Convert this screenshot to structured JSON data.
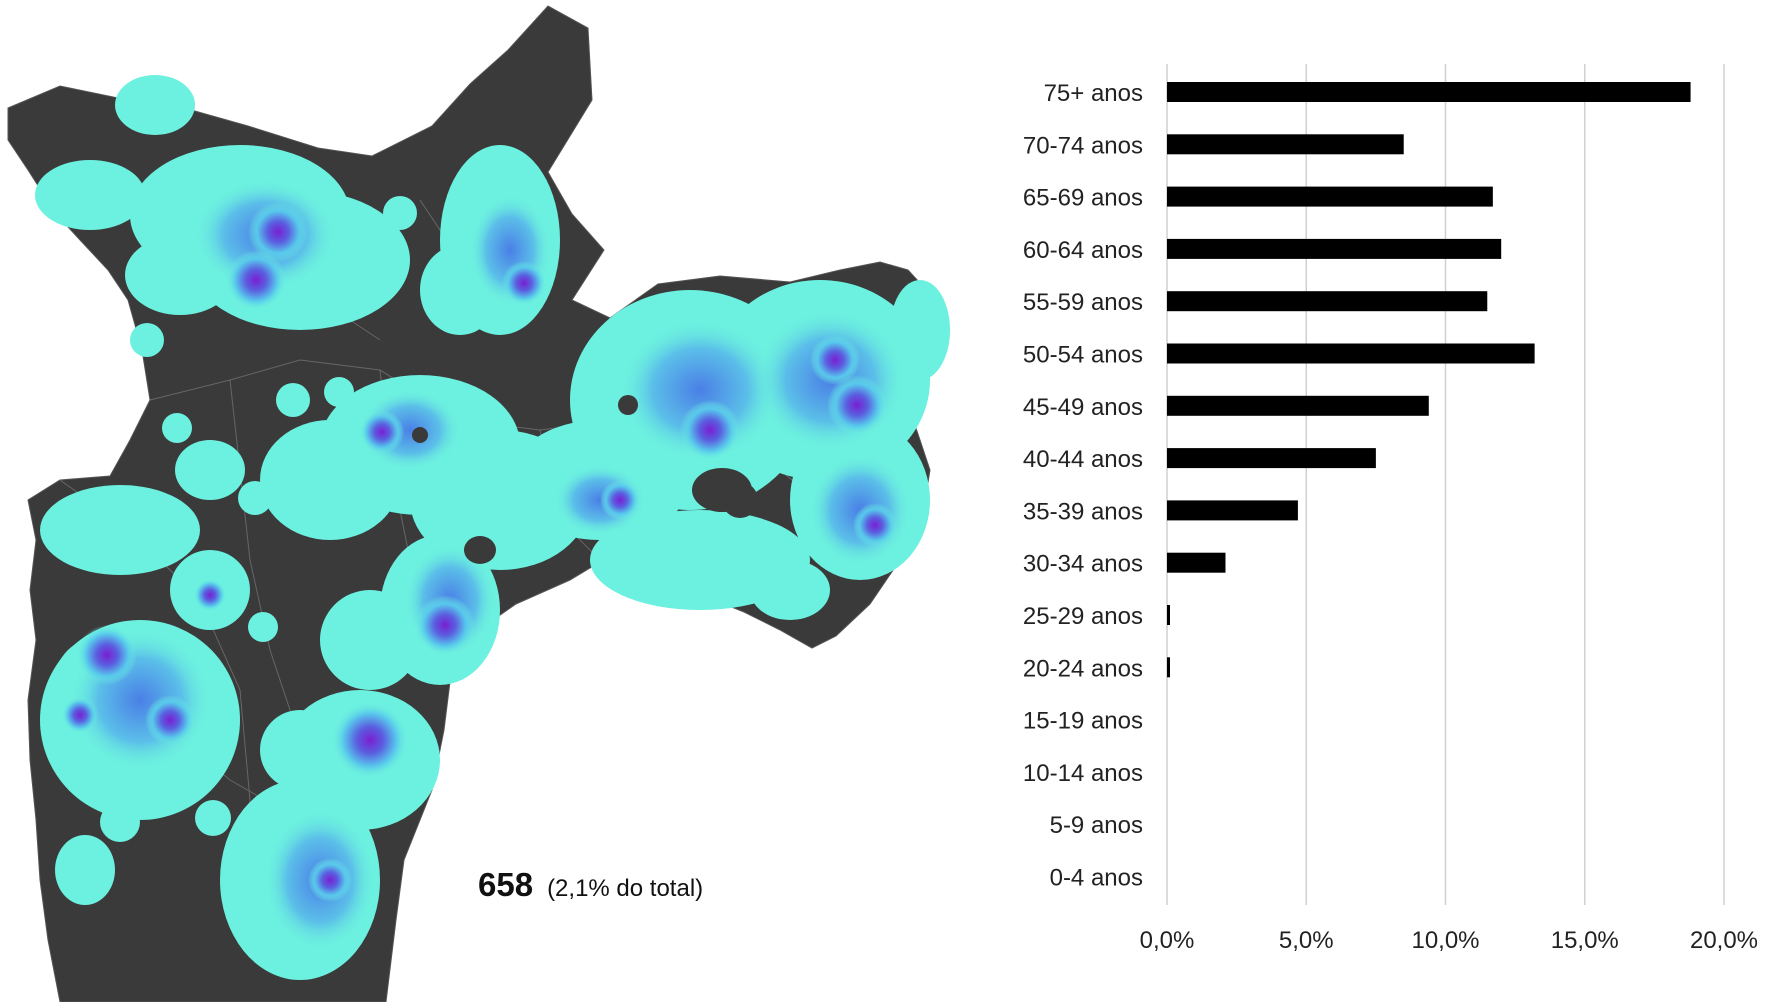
{
  "map": {
    "count": "658",
    "share_note": "(2,1% do total)",
    "colors": {
      "base": "#3a3a3a",
      "low": "#6cf0df",
      "mid": "#4a8de6",
      "high": "#7a1fd1",
      "peak": "#6a12b8"
    }
  },
  "chart_data": {
    "type": "bar",
    "orientation": "horizontal",
    "categories": [
      "75+ anos",
      "70-74 anos",
      "65-69 anos",
      "60-64 anos",
      "55-59 anos",
      "50-54 anos",
      "45-49 anos",
      "40-44 anos",
      "35-39 anos",
      "30-34 anos",
      "25-29 anos",
      "20-24 anos",
      "15-19 anos",
      "10-14 anos",
      "5-9 anos",
      "0-4 anos"
    ],
    "values": [
      18.8,
      8.5,
      11.7,
      12.0,
      11.5,
      13.2,
      9.4,
      7.5,
      4.7,
      2.1,
      0.1,
      0.1,
      0,
      0,
      0,
      0
    ],
    "x_ticks": [
      "0,0%",
      "5,0%",
      "10,0%",
      "15,0%",
      "20,0%"
    ],
    "xlim": [
      0,
      20
    ],
    "grid": true,
    "bar_color": "#000000",
    "grid_color": "#d0d0d0"
  }
}
